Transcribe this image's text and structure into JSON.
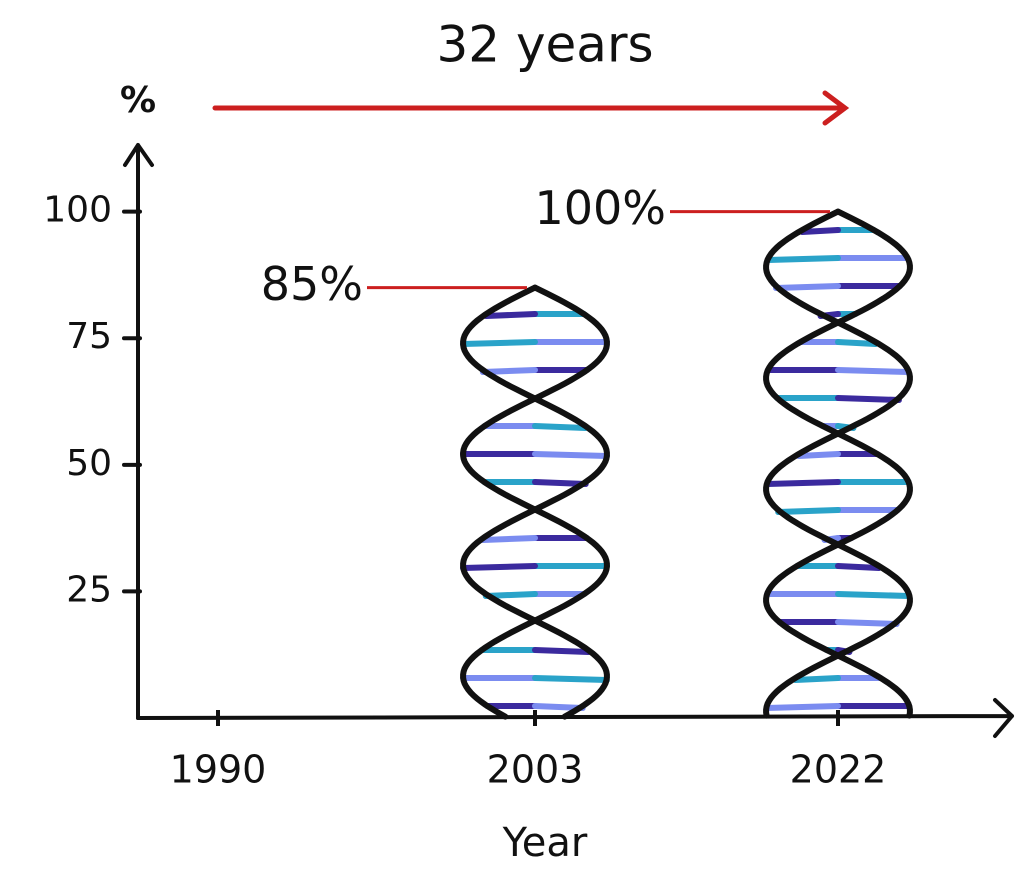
{
  "chart_data": {
    "type": "bar",
    "title": "32 years",
    "y_label": "%",
    "x_label": "Year",
    "categories": [
      "1990",
      "2003",
      "2022"
    ],
    "values": [
      null,
      85,
      100
    ],
    "value_labels": [
      null,
      "85%",
      "100%"
    ],
    "ylim": [
      0,
      110
    ],
    "yticks": [
      25,
      50,
      75,
      100
    ],
    "strand_color": "#111111",
    "rung_colors": [
      "#3b2a9e",
      "#7b8cf0",
      "#2aa3c9"
    ],
    "annotation_color": "#cc1f1f"
  }
}
